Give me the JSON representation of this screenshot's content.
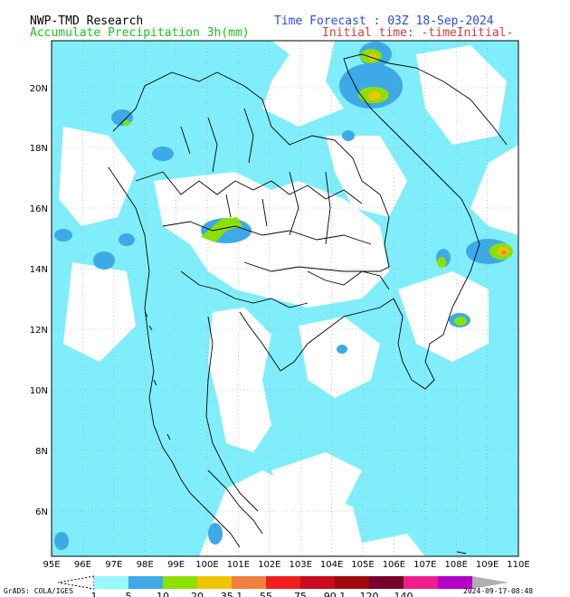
{
  "header": {
    "title_left": "NWP-TMD Research",
    "subtitle_left": "Accumulate Precipitation 3h(mm)",
    "title_right": "Time Forecast : 03Z 18-Sep-2024",
    "subtitle_right": "Initial time: -timeInitial-"
  },
  "map": {
    "lon_labels": [
      "95E",
      "96E",
      "97E",
      "98E",
      "99E",
      "100E",
      "101E",
      "102E",
      "103E",
      "104E",
      "105E",
      "106E",
      "107E",
      "108E",
      "109E",
      "110E"
    ],
    "lat_labels": [
      "20N",
      "18N",
      "16N",
      "14N",
      "12N",
      "10N",
      "8N",
      "6N"
    ],
    "colors": {
      "water_land_bg": "#ffffff",
      "precip_light": "#66e6f5",
      "precip_5": "#3da9e6",
      "precip_10": "#8ce000",
      "precip_20": "#e6b400",
      "precip_35": "#f08040",
      "border": "#000000"
    }
  },
  "legend": {
    "labels": [
      "1",
      "5",
      "10",
      "20",
      "35.1",
      "55",
      "75",
      "90.1",
      "120",
      "140"
    ],
    "colors": [
      "#99f8ff",
      "#3da9e6",
      "#8ce000",
      "#f0c400",
      "#f08040",
      "#f01e1e",
      "#c80a1e",
      "#a00a0a",
      "#78002a",
      "#f01e8c",
      "#b400c8"
    ]
  },
  "footer": {
    "credit": "GrADS: COLA/IGES",
    "timestamp": "2024-09-17-08:48"
  }
}
